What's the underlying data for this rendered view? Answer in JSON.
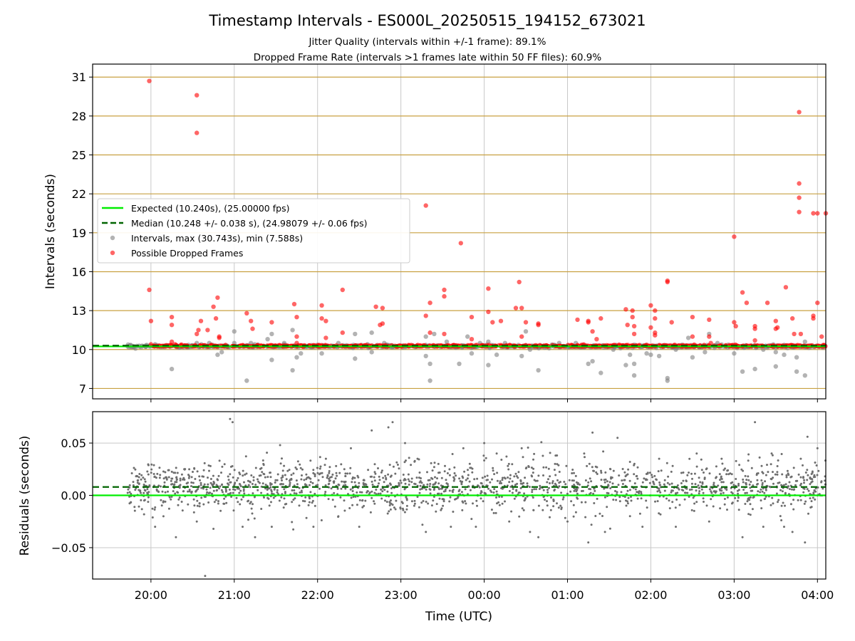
{
  "figure": {
    "title": "Timestamp Intervals - ES000L_20250515_194152_673021",
    "subtitle_1": "Jitter Quality (intervals within +/-1 frame): 89.1%",
    "subtitle_2": "Dropped Frame Rate (intervals >1 frames late within 50 FF files): 60.9%"
  },
  "colors": {
    "expected": "#00ee00",
    "median": "#006400",
    "intervals": "#808080",
    "dropped": "#ff0000",
    "hgrid_top": "#c8a040",
    "grid": "#c8c8c8"
  },
  "chart_data": [
    {
      "type": "scatter",
      "ylabel": "Intervals (seconds)",
      "xlabel": "",
      "ylim": [
        6.2,
        32.0
      ],
      "yticks": [
        7,
        10,
        13,
        16,
        19,
        22,
        25,
        28,
        31
      ],
      "grid": true,
      "legend_position": "center-left",
      "legend": [
        {
          "kind": "line",
          "label": "Expected (10.240s), (25.00000 fps)"
        },
        {
          "kind": "dashed",
          "label": "Median (10.248 +/- 0.038 s), (24.98079 +/- 0.06 fps)"
        },
        {
          "kind": "marker-gray",
          "label": "Intervals, max (30.743s), min (7.588s)"
        },
        {
          "kind": "marker-red",
          "label": "Possible Dropped Frames"
        }
      ],
      "expected_interval": 10.24,
      "median_interval": 10.248,
      "x_unit": "hours after 19:00 UTC",
      "xlim": [
        19.3,
        28.1
      ],
      "gray_outliers": [
        [
          19.72,
          10.25
        ],
        [
          19.95,
          10.35
        ],
        [
          20.05,
          10.4
        ],
        [
          20.1,
          10.3
        ],
        [
          20.25,
          8.5
        ],
        [
          20.35,
          10.3
        ],
        [
          20.55,
          10.5
        ],
        [
          20.7,
          10.5
        ],
        [
          20.8,
          9.6
        ],
        [
          20.85,
          9.8
        ],
        [
          21.0,
          10.5
        ],
        [
          21.0,
          11.4
        ],
        [
          21.15,
          7.6
        ],
        [
          21.2,
          10.5
        ],
        [
          21.4,
          10.8
        ],
        [
          21.45,
          11.2
        ],
        [
          21.45,
          9.2
        ],
        [
          21.6,
          10.5
        ],
        [
          21.7,
          11.5
        ],
        [
          21.7,
          8.4
        ],
        [
          21.75,
          9.4
        ],
        [
          21.8,
          9.7
        ],
        [
          22.05,
          9.7
        ],
        [
          22.25,
          10.5
        ],
        [
          22.45,
          9.3
        ],
        [
          22.45,
          11.2
        ],
        [
          22.6,
          10.4
        ],
        [
          22.65,
          11.3
        ],
        [
          22.65,
          9.8
        ],
        [
          22.8,
          10.5
        ],
        [
          23.3,
          9.5
        ],
        [
          23.3,
          11.0
        ],
        [
          23.35,
          8.9
        ],
        [
          23.35,
          7.6
        ],
        [
          23.4,
          11.2
        ],
        [
          23.55,
          10.6
        ],
        [
          23.65,
          10.3
        ],
        [
          23.7,
          8.9
        ],
        [
          23.8,
          11.0
        ],
        [
          23.85,
          9.7
        ],
        [
          23.95,
          10.5
        ],
        [
          24.05,
          8.8
        ],
        [
          24.05,
          10.6
        ],
        [
          24.15,
          9.6
        ],
        [
          24.25,
          10.5
        ],
        [
          24.45,
          9.5
        ],
        [
          24.5,
          11.4
        ],
        [
          24.55,
          10.0
        ],
        [
          24.65,
          8.4
        ],
        [
          24.9,
          10.5
        ],
        [
          25.1,
          10.5
        ],
        [
          25.25,
          8.9
        ],
        [
          25.3,
          9.1
        ],
        [
          25.4,
          8.2
        ],
        [
          25.55,
          10.0
        ],
        [
          25.7,
          8.8
        ],
        [
          25.75,
          9.6
        ],
        [
          25.8,
          8.0
        ],
        [
          25.8,
          8.9
        ],
        [
          25.95,
          9.7
        ],
        [
          26.0,
          9.6
        ],
        [
          26.1,
          9.5
        ],
        [
          26.2,
          7.6
        ],
        [
          26.2,
          7.8
        ],
        [
          26.3,
          10.0
        ],
        [
          26.45,
          10.9
        ],
        [
          26.5,
          9.4
        ],
        [
          26.65,
          9.8
        ],
        [
          26.7,
          11.2
        ],
        [
          26.8,
          10.5
        ],
        [
          27.0,
          9.7
        ],
        [
          27.1,
          8.3
        ],
        [
          27.2,
          10.3
        ],
        [
          27.25,
          8.5
        ],
        [
          27.35,
          10.0
        ],
        [
          27.5,
          9.8
        ],
        [
          27.5,
          8.7
        ],
        [
          27.6,
          9.6
        ],
        [
          27.7,
          10.3
        ],
        [
          27.75,
          8.3
        ],
        [
          27.75,
          9.4
        ],
        [
          27.85,
          8.0
        ],
        [
          27.85,
          10.6
        ]
      ],
      "dropped_frames": [
        [
          19.98,
          30.7
        ],
        [
          19.98,
          14.6
        ],
        [
          20.0,
          12.2
        ],
        [
          20.0,
          10.4
        ],
        [
          20.25,
          12.5
        ],
        [
          20.25,
          11.9
        ],
        [
          20.25,
          10.6
        ],
        [
          20.55,
          29.6
        ],
        [
          20.55,
          26.7
        ],
        [
          20.55,
          11.2
        ],
        [
          20.57,
          11.5
        ],
        [
          20.6,
          12.2
        ],
        [
          20.68,
          11.5
        ],
        [
          20.75,
          13.3
        ],
        [
          20.78,
          12.4
        ],
        [
          20.8,
          14.0
        ],
        [
          20.82,
          10.9
        ],
        [
          20.82,
          11.0
        ],
        [
          21.15,
          12.8
        ],
        [
          21.2,
          12.2
        ],
        [
          21.22,
          11.6
        ],
        [
          21.45,
          12.1
        ],
        [
          21.72,
          13.5
        ],
        [
          21.75,
          12.5
        ],
        [
          21.75,
          11.0
        ],
        [
          21.75,
          10.5
        ],
        [
          22.05,
          13.4
        ],
        [
          22.05,
          12.4
        ],
        [
          22.1,
          12.2
        ],
        [
          22.1,
          10.9
        ],
        [
          22.3,
          14.6
        ],
        [
          22.3,
          11.3
        ],
        [
          22.7,
          13.3
        ],
        [
          22.75,
          11.9
        ],
        [
          22.78,
          13.2
        ],
        [
          22.78,
          12.0
        ],
        [
          23.3,
          21.1
        ],
        [
          23.3,
          12.6
        ],
        [
          23.35,
          13.6
        ],
        [
          23.35,
          11.3
        ],
        [
          23.52,
          14.6
        ],
        [
          23.52,
          14.1
        ],
        [
          23.52,
          11.2
        ],
        [
          23.72,
          18.2
        ],
        [
          23.85,
          12.5
        ],
        [
          23.85,
          10.8
        ],
        [
          24.05,
          14.7
        ],
        [
          24.05,
          12.9
        ],
        [
          24.1,
          12.1
        ],
        [
          24.2,
          12.2
        ],
        [
          24.38,
          13.2
        ],
        [
          24.42,
          15.2
        ],
        [
          24.45,
          13.2
        ],
        [
          24.45,
          11.0
        ],
        [
          24.5,
          12.1
        ],
        [
          24.65,
          12.0
        ],
        [
          24.65,
          11.9
        ],
        [
          25.12,
          12.3
        ],
        [
          25.25,
          12.2
        ],
        [
          25.25,
          12.1
        ],
        [
          25.3,
          11.4
        ],
        [
          25.35,
          10.8
        ],
        [
          25.4,
          12.4
        ],
        [
          25.7,
          13.1
        ],
        [
          25.72,
          11.9
        ],
        [
          25.78,
          13.0
        ],
        [
          25.78,
          12.5
        ],
        [
          25.8,
          11.8
        ],
        [
          25.8,
          11.2
        ],
        [
          26.0,
          13.4
        ],
        [
          26.0,
          11.7
        ],
        [
          26.05,
          13.0
        ],
        [
          26.05,
          12.4
        ],
        [
          26.05,
          11.3
        ],
        [
          26.05,
          11.1
        ],
        [
          26.2,
          15.3
        ],
        [
          26.2,
          15.2
        ],
        [
          26.25,
          12.1
        ],
        [
          26.5,
          12.5
        ],
        [
          26.5,
          11.0
        ],
        [
          26.7,
          12.3
        ],
        [
          26.7,
          11.0
        ],
        [
          26.72,
          10.5
        ],
        [
          27.0,
          18.7
        ],
        [
          27.0,
          12.1
        ],
        [
          27.02,
          11.8
        ],
        [
          27.1,
          14.4
        ],
        [
          27.15,
          13.6
        ],
        [
          27.25,
          11.8
        ],
        [
          27.25,
          11.6
        ],
        [
          27.25,
          10.7
        ],
        [
          27.4,
          13.6
        ],
        [
          27.5,
          12.2
        ],
        [
          27.5,
          11.6
        ],
        [
          27.52,
          11.7
        ],
        [
          27.62,
          14.8
        ],
        [
          27.7,
          12.4
        ],
        [
          27.72,
          11.2
        ],
        [
          27.78,
          28.3
        ],
        [
          27.78,
          22.8
        ],
        [
          27.78,
          21.7
        ],
        [
          27.78,
          20.6
        ],
        [
          27.8,
          11.2
        ],
        [
          27.95,
          20.5
        ],
        [
          27.95,
          12.6
        ],
        [
          27.95,
          12.4
        ],
        [
          28.0,
          20.5
        ],
        [
          28.0,
          13.6
        ],
        [
          28.05,
          11.0
        ],
        [
          28.1,
          20.5
        ]
      ],
      "dense_band_start": 19.72,
      "dense_band_end": 28.1
    },
    {
      "type": "scatter",
      "ylabel": "Residuals (seconds)",
      "xlabel": "Time (UTC)",
      "ylim": [
        -0.08,
        0.08
      ],
      "yticks": [
        -0.05,
        0.0,
        0.05
      ],
      "ytick_labels": [
        "−0.05",
        "0.00",
        "0.05"
      ],
      "xticks": [
        20,
        21,
        22,
        23,
        24,
        25,
        26,
        27,
        28
      ],
      "xtick_labels": [
        "20:00",
        "21:00",
        "22:00",
        "23:00",
        "00:00",
        "01:00",
        "02:00",
        "03:00",
        "04:00"
      ],
      "xlim": [
        19.3,
        28.1
      ],
      "grid": true,
      "expected_residual": 0.0,
      "median_residual": 0.008,
      "residual_outliers": [
        [
          19.97,
          0.02
        ],
        [
          20.05,
          -0.03
        ],
        [
          20.15,
          -0.02
        ],
        [
          20.3,
          -0.04
        ],
        [
          20.4,
          0.025
        ],
        [
          20.55,
          -0.025
        ],
        [
          20.65,
          -0.077
        ],
        [
          20.75,
          -0.032
        ],
        [
          20.95,
          0.073
        ],
        [
          20.98,
          0.07
        ],
        [
          21.1,
          -0.03
        ],
        [
          21.25,
          -0.04
        ],
        [
          21.35,
          0.03
        ],
        [
          21.45,
          -0.03
        ],
        [
          21.55,
          0.048
        ],
        [
          21.75,
          0.025
        ],
        [
          21.95,
          -0.03
        ],
        [
          22.1,
          0.035
        ],
        [
          22.25,
          -0.02
        ],
        [
          22.4,
          0.045
        ],
        [
          22.5,
          -0.03
        ],
        [
          22.65,
          0.062
        ],
        [
          22.85,
          0.065
        ],
        [
          22.9,
          0.07
        ],
        [
          23.05,
          0.05
        ],
        [
          23.2,
          0.035
        ],
        [
          23.3,
          -0.035
        ],
        [
          23.45,
          0.03
        ],
        [
          23.6,
          -0.03
        ],
        [
          23.75,
          0.045
        ],
        [
          23.9,
          -0.03
        ],
        [
          24.0,
          0.05
        ],
        [
          24.15,
          0.04
        ],
        [
          24.3,
          -0.025
        ],
        [
          24.45,
          0.045
        ],
        [
          24.55,
          -0.035
        ],
        [
          24.65,
          -0.04
        ],
        [
          24.85,
          0.03
        ],
        [
          25.0,
          -0.025
        ],
        [
          25.2,
          0.04
        ],
        [
          25.25,
          -0.045
        ],
        [
          25.3,
          0.06
        ],
        [
          25.45,
          -0.035
        ],
        [
          25.6,
          0.055
        ],
        [
          25.75,
          0.032
        ],
        [
          25.9,
          -0.03
        ],
        [
          26.1,
          0.035
        ],
        [
          26.3,
          -0.03
        ],
        [
          26.55,
          0.04
        ],
        [
          26.7,
          -0.025
        ],
        [
          26.85,
          0.035
        ],
        [
          27.1,
          -0.04
        ],
        [
          27.25,
          0.07
        ],
        [
          27.35,
          -0.03
        ],
        [
          27.45,
          0.04
        ],
        [
          27.6,
          -0.03
        ],
        [
          27.7,
          -0.035
        ],
        [
          27.8,
          0.035
        ],
        [
          27.85,
          -0.045
        ],
        [
          27.88,
          0.056
        ],
        [
          28.0,
          0.045
        ]
      ]
    }
  ]
}
